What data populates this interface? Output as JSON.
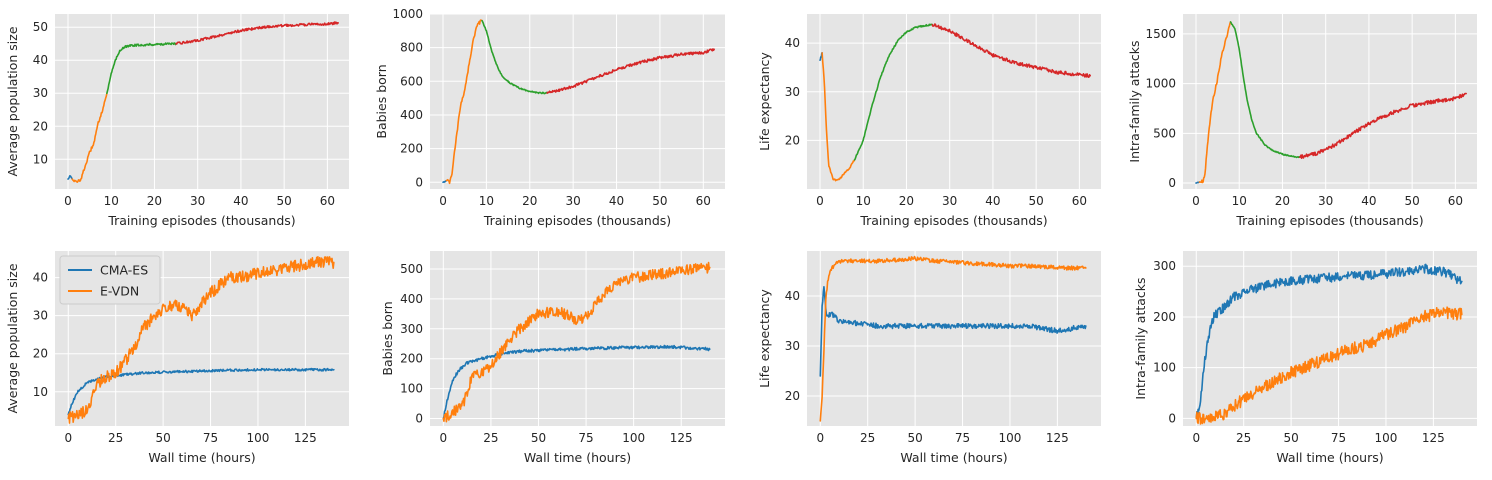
{
  "colors": {
    "blue": "#1f77b4",
    "orange": "#ff7f0e",
    "green": "#2ca02c",
    "red": "#d62728",
    "background": "#e5e5e5",
    "grid": "#ffffff"
  },
  "chart_data": [
    {
      "type": "line",
      "ylabel": "Average population size",
      "xlabel": "Training episodes (thousands)",
      "xlim": [
        -3,
        65
      ],
      "ylim": [
        1,
        54
      ],
      "xticks": [
        0,
        10,
        20,
        30,
        40,
        50,
        60
      ],
      "yticks": [
        10,
        20,
        30,
        40,
        50
      ],
      "series": [
        {
          "name": "segment-blue",
          "color": "blue",
          "noise": 0.3,
          "x": [
            0,
            0.6,
            1
          ],
          "y": [
            4,
            5.2,
            4
          ]
        },
        {
          "name": "segment-orange",
          "color": "orange",
          "noise": 0.4,
          "x": [
            1,
            2,
            3,
            4,
            5,
            6,
            7,
            8,
            9
          ],
          "y": [
            4,
            3,
            4,
            8,
            12,
            15,
            21,
            25,
            30
          ]
        },
        {
          "name": "segment-green",
          "color": "green",
          "noise": 0.3,
          "x": [
            9,
            10,
            11,
            12,
            13,
            15,
            20,
            25
          ],
          "y": [
            30,
            36,
            40,
            43,
            44,
            44.5,
            44.8,
            45
          ]
        },
        {
          "name": "segment-red",
          "color": "red",
          "noise": 0.35,
          "x": [
            25,
            30,
            35,
            40,
            45,
            50,
            55,
            60,
            62.5
          ],
          "y": [
            45,
            46,
            47.5,
            49,
            50,
            50.5,
            50.8,
            51,
            51.3
          ]
        }
      ]
    },
    {
      "type": "line",
      "ylabel": "Babies born",
      "xlabel": "Training episodes (thousands)",
      "xlim": [
        -3,
        65
      ],
      "ylim": [
        -40,
        1000
      ],
      "xticks": [
        0,
        10,
        20,
        30,
        40,
        50,
        60
      ],
      "yticks": [
        0,
        200,
        400,
        600,
        800,
        1000
      ],
      "series": [
        {
          "name": "segment-blue",
          "color": "blue",
          "noise": 4,
          "x": [
            0,
            0.8
          ],
          "y": [
            0,
            10
          ]
        },
        {
          "name": "segment-orange",
          "color": "orange",
          "noise": 10,
          "x": [
            0.8,
            1.5,
            2,
            3,
            4,
            5,
            6,
            7,
            8,
            9
          ],
          "y": [
            10,
            0,
            40,
            250,
            450,
            550,
            700,
            850,
            940,
            960
          ]
        },
        {
          "name": "segment-green",
          "color": "green",
          "noise": 4,
          "x": [
            9,
            10,
            11,
            12,
            13,
            14,
            16,
            18,
            20,
            22,
            24
          ],
          "y": [
            960,
            900,
            800,
            720,
            660,
            620,
            580,
            555,
            540,
            532,
            530
          ]
        },
        {
          "name": "segment-red",
          "color": "red",
          "noise": 8,
          "x": [
            24,
            30,
            35,
            40,
            45,
            50,
            55,
            60,
            62.5
          ],
          "y": [
            530,
            570,
            620,
            670,
            710,
            740,
            760,
            770,
            790
          ]
        }
      ]
    },
    {
      "type": "line",
      "ylabel": "Life expectancy",
      "xlabel": "Training episodes (thousands)",
      "xlim": [
        -3,
        65
      ],
      "ylim": [
        10,
        46
      ],
      "xticks": [
        0,
        10,
        20,
        30,
        40,
        50,
        60
      ],
      "yticks": [
        20,
        30,
        40
      ],
      "series": [
        {
          "name": "segment-blue",
          "color": "blue",
          "noise": 0.2,
          "x": [
            0,
            0.5
          ],
          "y": [
            36.5,
            38
          ]
        },
        {
          "name": "segment-orange",
          "color": "orange",
          "noise": 0.2,
          "x": [
            0.5,
            1,
            1.5,
            2,
            3,
            4,
            5,
            6,
            7,
            8
          ],
          "y": [
            38,
            32,
            22,
            15,
            12,
            11.8,
            12.5,
            13.5,
            14.5,
            16
          ]
        },
        {
          "name": "segment-green",
          "color": "green",
          "noise": 0.15,
          "x": [
            8,
            10,
            12,
            14,
            16,
            18,
            20,
            22,
            24,
            26
          ],
          "y": [
            16,
            20,
            27,
            33,
            37.5,
            40.5,
            42.3,
            43.2,
            43.6,
            43.8
          ]
        },
        {
          "name": "segment-red",
          "color": "red",
          "noise": 0.35,
          "x": [
            26,
            30,
            35,
            40,
            45,
            50,
            55,
            60,
            62.5
          ],
          "y": [
            43.8,
            42.5,
            40,
            37.5,
            36,
            35,
            34,
            33.5,
            33.3
          ]
        }
      ]
    },
    {
      "type": "line",
      "ylabel": "Intra-family attacks",
      "xlabel": "Training episodes (thousands)",
      "xlim": [
        -3,
        65
      ],
      "ylim": [
        -60,
        1700
      ],
      "xticks": [
        0,
        10,
        20,
        30,
        40,
        50,
        60
      ],
      "yticks": [
        0,
        500,
        1000,
        1500
      ],
      "series": [
        {
          "name": "segment-blue",
          "color": "blue",
          "noise": 3,
          "x": [
            0,
            0.8
          ],
          "y": [
            0,
            10
          ]
        },
        {
          "name": "segment-orange",
          "color": "orange",
          "noise": 18,
          "x": [
            0.8,
            1.5,
            2,
            3,
            4,
            5,
            6,
            7,
            8
          ],
          "y": [
            10,
            20,
            50,
            550,
            850,
            1050,
            1300,
            1450,
            1620
          ]
        },
        {
          "name": "segment-green",
          "color": "green",
          "noise": 6,
          "x": [
            8,
            9,
            10,
            11,
            12,
            13,
            14,
            16,
            18,
            20,
            22,
            24
          ],
          "y": [
            1620,
            1550,
            1350,
            1050,
            800,
            620,
            500,
            380,
            320,
            290,
            270,
            260
          ]
        },
        {
          "name": "segment-red",
          "color": "red",
          "noise": 18,
          "x": [
            24,
            28,
            32,
            36,
            40,
            45,
            50,
            55,
            60,
            62.5
          ],
          "y": [
            260,
            300,
            380,
            490,
            600,
            700,
            780,
            820,
            850,
            900
          ]
        }
      ]
    },
    {
      "type": "line",
      "ylabel": "Average population size",
      "xlabel": "Wall time (hours)",
      "xlim": [
        -7,
        148
      ],
      "ylim": [
        1,
        47
      ],
      "xticks": [
        0,
        25,
        50,
        75,
        100,
        125
      ],
      "yticks": [
        10,
        20,
        30,
        40
      ],
      "legend": {
        "position": "top-left",
        "entries": [
          "CMA-ES",
          "E-VDN"
        ]
      },
      "series": [
        {
          "name": "CMA-ES",
          "color": "blue",
          "noise": 0.3,
          "x": [
            0,
            2,
            5,
            10,
            20,
            40,
            60,
            80,
            100,
            120,
            140
          ],
          "y": [
            4,
            7,
            10,
            12.5,
            14,
            15,
            15.3,
            15.6,
            15.8,
            15.8,
            15.8
          ]
        },
        {
          "name": "E-VDN",
          "color": "orange",
          "noise": 1.6,
          "x": [
            0,
            5,
            10,
            15,
            20,
            25,
            30,
            35,
            40,
            45,
            50,
            55,
            60,
            65,
            70,
            75,
            80,
            85,
            90,
            100,
            110,
            120,
            130,
            140
          ],
          "y": [
            3,
            4,
            5,
            12,
            14,
            15,
            18,
            22,
            27,
            30,
            32,
            33,
            32,
            30,
            33,
            36,
            38,
            40,
            40,
            41,
            42,
            43,
            44,
            44
          ]
        }
      ]
    },
    {
      "type": "line",
      "ylabel": "Babies born",
      "xlabel": "Wall time (hours)",
      "xlim": [
        -7,
        148
      ],
      "ylim": [
        -25,
        560
      ],
      "xticks": [
        0,
        25,
        50,
        75,
        100,
        125
      ],
      "yticks": [
        0,
        100,
        200,
        300,
        400,
        500
      ],
      "series": [
        {
          "name": "CMA-ES",
          "color": "blue",
          "noise": 5,
          "x": [
            0,
            2,
            5,
            8,
            12,
            20,
            30,
            40,
            60,
            80,
            100,
            120,
            140
          ],
          "y": [
            0,
            60,
            130,
            160,
            185,
            200,
            215,
            225,
            230,
            235,
            238,
            240,
            232
          ]
        },
        {
          "name": "E-VDN",
          "color": "orange",
          "noise": 18,
          "x": [
            0,
            5,
            10,
            15,
            20,
            25,
            30,
            35,
            40,
            50,
            60,
            70,
            75,
            80,
            85,
            90,
            100,
            110,
            120,
            130,
            140
          ],
          "y": [
            0,
            20,
            40,
            140,
            150,
            175,
            220,
            260,
            300,
            350,
            360,
            330,
            340,
            380,
            420,
            450,
            470,
            480,
            490,
            500,
            505
          ]
        }
      ]
    },
    {
      "type": "line",
      "ylabel": "Life expectancy",
      "xlabel": "Wall time (hours)",
      "xlim": [
        -7,
        148
      ],
      "ylim": [
        14,
        49
      ],
      "xticks": [
        0,
        25,
        50,
        75,
        100,
        125
      ],
      "yticks": [
        20,
        30,
        40
      ],
      "series": [
        {
          "name": "CMA-ES",
          "color": "blue",
          "noise": 0.5,
          "x": [
            0,
            1,
            2,
            3,
            4,
            6,
            10,
            20,
            30,
            50,
            70,
            90,
            110,
            125,
            140
          ],
          "y": [
            24,
            38,
            42,
            37,
            36,
            36.5,
            35,
            34.5,
            34,
            34,
            34,
            34,
            34,
            33,
            34
          ]
        },
        {
          "name": "E-VDN",
          "color": "orange",
          "noise": 0.4,
          "x": [
            0,
            1,
            2,
            3,
            4,
            5,
            8,
            12,
            20,
            30,
            40,
            50,
            60,
            70,
            80,
            90,
            100,
            110,
            120,
            130,
            140
          ],
          "y": [
            15,
            20,
            30,
            40,
            43,
            45,
            46.5,
            47,
            47,
            47,
            47.2,
            47.5,
            47,
            46.8,
            46.5,
            46.3,
            46,
            46,
            45.8,
            45.6,
            45.6
          ]
        }
      ]
    },
    {
      "type": "line",
      "ylabel": "Intra-family attacks",
      "xlabel": "Wall time (hours)",
      "xlim": [
        -7,
        148
      ],
      "ylim": [
        -15,
        330
      ],
      "xticks": [
        0,
        25,
        50,
        75,
        100,
        125
      ],
      "yticks": [
        0,
        100,
        200,
        300
      ],
      "series": [
        {
          "name": "CMA-ES",
          "color": "blue",
          "noise": 9,
          "x": [
            0,
            2,
            4,
            6,
            8,
            10,
            15,
            20,
            30,
            40,
            50,
            60,
            80,
            100,
            120,
            130,
            140
          ],
          "y": [
            0,
            30,
            100,
            150,
            190,
            205,
            220,
            240,
            255,
            265,
            270,
            275,
            280,
            285,
            295,
            290,
            270
          ]
        },
        {
          "name": "E-VDN",
          "color": "orange",
          "noise": 12,
          "x": [
            0,
            10,
            15,
            20,
            30,
            40,
            50,
            60,
            70,
            80,
            90,
            100,
            110,
            120,
            130,
            140
          ],
          "y": [
            0,
            3,
            10,
            25,
            50,
            70,
            90,
            105,
            120,
            135,
            145,
            165,
            180,
            200,
            210,
            205
          ]
        }
      ]
    }
  ]
}
